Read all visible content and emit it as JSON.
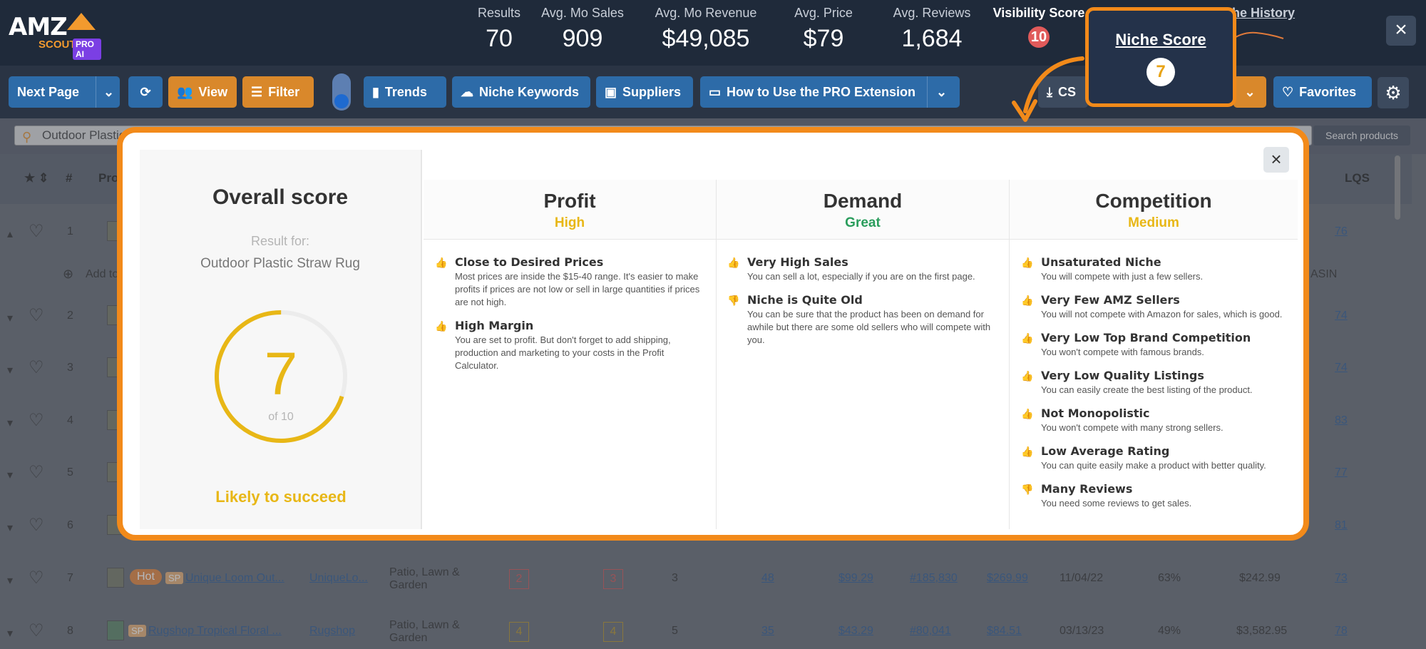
{
  "header": {
    "logo": {
      "amz": "AMZ",
      "scout": "SCOUT",
      "pro": "PRO AI"
    },
    "stats": [
      {
        "label": "Results",
        "value": "70"
      },
      {
        "label": "Avg. Mo Sales",
        "value": "909"
      },
      {
        "label": "Avg. Mo Revenue",
        "value": "$49,085"
      },
      {
        "label": "Avg. Price",
        "value": "$79"
      },
      {
        "label": "Avg. Reviews",
        "value": "1,684"
      }
    ],
    "visibility": {
      "label": "Visibility Score",
      "value": "10"
    },
    "niche_history": "che History",
    "close_icon": "×"
  },
  "toolbar": {
    "next_page": "Next Page",
    "view": "View",
    "filter": "Filter",
    "trends": "Trends",
    "niche_keywords": "Niche Keywords",
    "suppliers": "Suppliers",
    "how_to": "How to Use the PRO Extension",
    "csv": "CS",
    "favorites": "Favorites"
  },
  "search": {
    "value": "Outdoor Plastic",
    "button": "Search products"
  },
  "table": {
    "headers": {
      "hash": "#",
      "product": "Pro",
      "lqs": "LQS"
    },
    "add_to": "Add to",
    "asin": "ASIN",
    "row_numbers": [
      "1",
      "2",
      "3",
      "4",
      "5",
      "6",
      "7",
      "8"
    ],
    "lqs_values": [
      "76",
      "74",
      "74",
      "83",
      "77",
      "81",
      "73",
      "78"
    ],
    "row7": {
      "hot": "Hot",
      "sp": "SP",
      "name": "Unique Loom Out...",
      "brand": "UniqueLo...",
      "category_line1": "Patio, Lawn &",
      "category_line2": "Garden",
      "box1": "2",
      "box2": "3",
      "sellers": "3",
      "reviews": "48",
      "price": "$99.29",
      "bsr": "#185,830",
      "fees": "$269.99",
      "date": "11/04/22",
      "pct": "63%",
      "revenue": "$242.99"
    },
    "row8": {
      "sp": "SP",
      "name": "Rugshop Tropical Floral ...",
      "brand": "Rugshop",
      "category_line1": "Patio, Lawn &",
      "category_line2": "Garden",
      "box1": "4",
      "box2": "4",
      "sellers": "5",
      "reviews": "35",
      "price": "$43.29",
      "bsr": "#80,041",
      "fees": "$84.51",
      "date": "03/13/23",
      "pct": "49%",
      "revenue": "$3,582.95"
    }
  },
  "niche_card": {
    "title": "Niche Score",
    "value": "7"
  },
  "modal": {
    "overall_title": "Overall score",
    "result_for": "Result for:",
    "niche_name": "Outdoor Plastic Straw Rug",
    "score": 7,
    "score_display": "7",
    "score_of": "of 10",
    "verdict": "Likely to succeed",
    "close_icon": "×",
    "colors": {
      "yellow": "#e8b716",
      "green": "#2a9d5c",
      "accent": "#f28a1a"
    },
    "columns": [
      {
        "title": "Profit",
        "level": "High",
        "level_color": "#e8b716",
        "items": [
          {
            "icon": "thumbs-up-icon",
            "color": "#e8b716",
            "title": "Close to Desired Prices",
            "desc": "Most prices are inside the $15-40 range. It's easier to make profits if prices are not low or sell in large quantities if prices are not high."
          },
          {
            "icon": "thumbs-up-icon",
            "color": "#e8b716",
            "title": "High Margin",
            "desc": "You are set to profit. But don't forget to add shipping, production and marketing to your costs in the Profit Calculator."
          }
        ]
      },
      {
        "title": "Demand",
        "level": "Great",
        "level_color": "#2a9d5c",
        "items": [
          {
            "icon": "thumbs-up-icon",
            "color": "#2a9d5c",
            "title": "Very High Sales",
            "desc": "You can sell a lot, especially if you are on the first page."
          },
          {
            "icon": "thumbs-down-icon",
            "color": "#e8b716",
            "title": "Niche is Quite Old",
            "desc": "You can be sure that the product has been on demand for awhile but there are some old sellers who will compete with you."
          }
        ]
      },
      {
        "title": "Competition",
        "level": "Medium",
        "level_color": "#e8b716",
        "items": [
          {
            "icon": "thumbs-up-icon",
            "color": "#2a9d5c",
            "title": "Unsaturated Niche",
            "desc": "You will compete with just a few sellers."
          },
          {
            "icon": "thumbs-up-icon",
            "color": "#2a9d5c",
            "title": "Very Few AMZ Sellers",
            "desc": "You will not compete with Amazon for sales, which is good."
          },
          {
            "icon": "thumbs-up-icon",
            "color": "#2a9d5c",
            "title": "Very Low Top Brand Competition",
            "desc": "You won't compete with famous brands."
          },
          {
            "icon": "thumbs-up-icon",
            "color": "#2a9d5c",
            "title": "Very Low Quality Listings",
            "desc": "You can easily create the best listing of the product."
          },
          {
            "icon": "thumbs-up-icon",
            "color": "#e8b716",
            "title": "Not Monopolistic",
            "desc": "You won't compete with many strong sellers."
          },
          {
            "icon": "thumbs-up-icon",
            "color": "#e8b716",
            "title": "Low Average Rating",
            "desc": "You can quite easily make a product with better quality."
          },
          {
            "icon": "thumbs-down-icon",
            "color": "#e8b716",
            "title": "Many Reviews",
            "desc": "You need some reviews to get sales."
          }
        ]
      }
    ]
  }
}
